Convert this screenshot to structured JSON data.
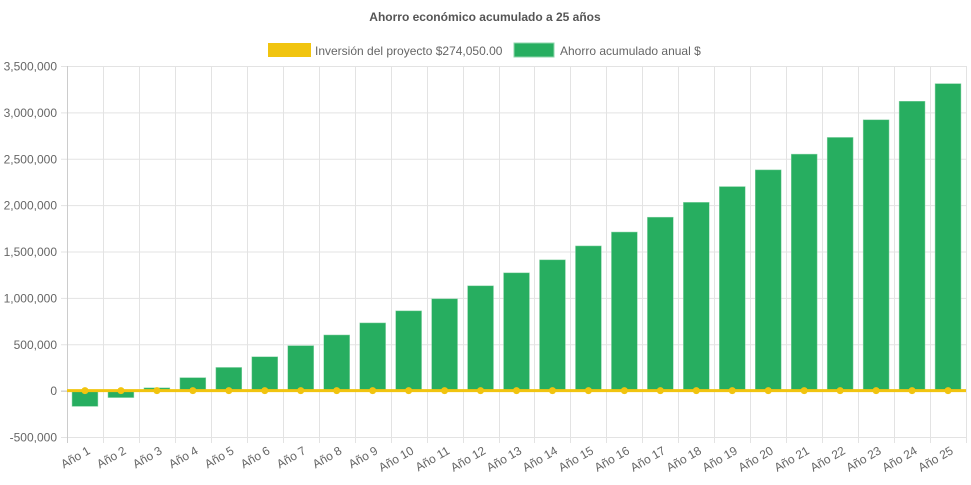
{
  "chart_data": {
    "type": "bar",
    "title": "Ahorro económico acumulado a 25 años",
    "xlabel": "",
    "ylabel": "",
    "ylim": [
      -500000,
      3500000
    ],
    "yticks": [
      "3,500,000",
      "3,000,000",
      "2,500,000",
      "2,000,000",
      "1,500,000",
      "1,000,000",
      "500,000",
      "0",
      "-500,000"
    ],
    "ytick_values": [
      3500000,
      3000000,
      2500000,
      2000000,
      1500000,
      1000000,
      500000,
      0,
      -500000
    ],
    "grid": true,
    "legend_placement": "top",
    "categories": [
      "Año 1",
      "Año 2",
      "Año 3",
      "Año 4",
      "Año 5",
      "Año 6",
      "Año 7",
      "Año 8",
      "Año 9",
      "Año 10",
      "Año 11",
      "Año 12",
      "Año 13",
      "Año 14",
      "Año 15",
      "Año 16",
      "Año 17",
      "Año 18",
      "Año 19",
      "Año 20",
      "Año 21",
      "Año 22",
      "Año 23",
      "Año 24",
      "Año 25"
    ],
    "series": [
      {
        "name": "Inversión del proyecto $274,050.00",
        "type": "line",
        "color": "#f1c40f",
        "values": [
          0,
          0,
          0,
          0,
          0,
          0,
          0,
          0,
          0,
          0,
          0,
          0,
          0,
          0,
          0,
          0,
          0,
          0,
          0,
          0,
          0,
          0,
          0,
          0,
          0
        ]
      },
      {
        "name": "Ahorro acumulado anual $",
        "type": "bar",
        "color": "#27ae60",
        "values": [
          -170000,
          -75000,
          30000,
          140000,
          250000,
          365000,
          485000,
          600000,
          730000,
          860000,
          990000,
          1130000,
          1270000,
          1410000,
          1560000,
          1710000,
          1870000,
          2030000,
          2200000,
          2380000,
          2550000,
          2730000,
          2920000,
          3120000,
          3310000
        ]
      }
    ]
  }
}
